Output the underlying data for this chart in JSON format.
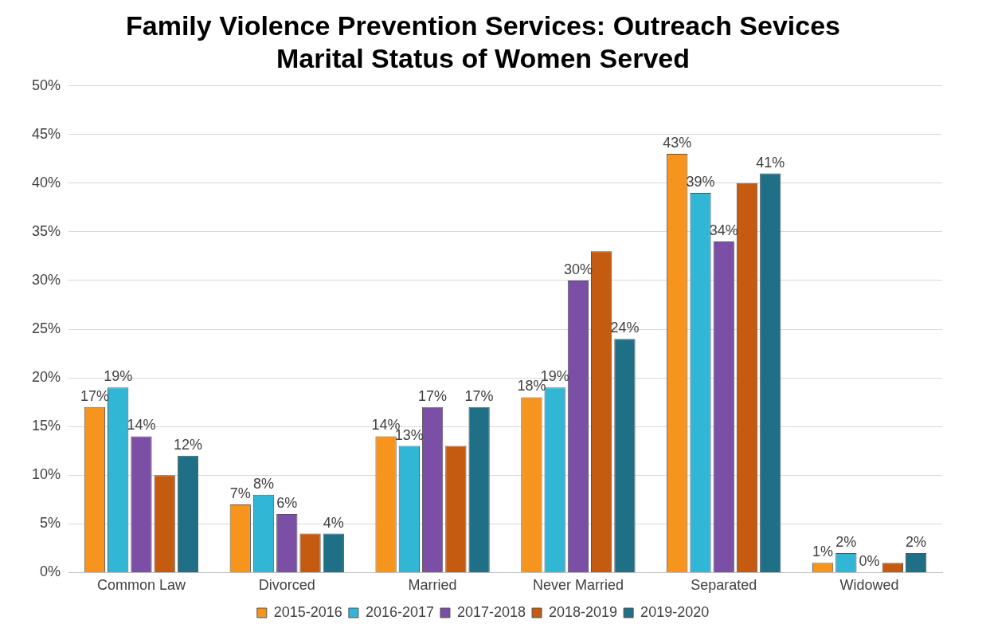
{
  "chart_data": {
    "type": "bar",
    "title": "Family Violence Prevention Services: Outreach Sevices\nMarital Status of Women Served",
    "categories": [
      "Common Law",
      "Divorced",
      "Married",
      "Never Married",
      "Separated",
      "Widowed"
    ],
    "series": [
      {
        "name": "2015-2016",
        "color": "#f7941d",
        "values": [
          17,
          7,
          14,
          18,
          43,
          1
        ],
        "value_labels": [
          "17%",
          "7%",
          "14%",
          "18%",
          "43%",
          "1%"
        ]
      },
      {
        "name": "2016-2017",
        "color": "#31b6d6",
        "values": [
          19,
          8,
          13,
          19,
          39,
          2
        ],
        "value_labels": [
          "19%",
          "8%",
          "13%",
          "19%",
          "39%",
          "2%"
        ]
      },
      {
        "name": "2017-2018",
        "color": "#7b4fa6",
        "values": [
          14,
          6,
          17,
          30,
          34,
          0
        ],
        "value_labels": [
          "14%",
          "6%",
          "17%",
          "30%",
          "34%",
          "0%"
        ]
      },
      {
        "name": "2018-2019",
        "color": "#c55a11",
        "values": [
          10,
          4,
          13,
          33,
          40,
          1
        ],
        "value_labels": [
          null,
          null,
          null,
          null,
          null,
          null
        ]
      },
      {
        "name": "2019-2020",
        "color": "#1f6f86",
        "values": [
          12,
          4,
          17,
          24,
          41,
          2
        ],
        "value_labels": [
          "12%",
          "4%",
          "17%",
          "24%",
          "41%",
          "2%"
        ]
      }
    ],
    "ylim": [
      0,
      50
    ],
    "yticks": [
      {
        "value": 0,
        "label": "0%"
      },
      {
        "value": 5,
        "label": "5%"
      },
      {
        "value": 10,
        "label": "10%"
      },
      {
        "value": 15,
        "label": "15%"
      },
      {
        "value": 20,
        "label": "20%"
      },
      {
        "value": 25,
        "label": "25%"
      },
      {
        "value": 30,
        "label": "30%"
      },
      {
        "value": 35,
        "label": "35%"
      },
      {
        "value": 40,
        "label": "40%"
      },
      {
        "value": 45,
        "label": "45%"
      },
      {
        "value": 50,
        "label": "50%"
      }
    ],
    "grid": "y",
    "legend": "bottom"
  }
}
